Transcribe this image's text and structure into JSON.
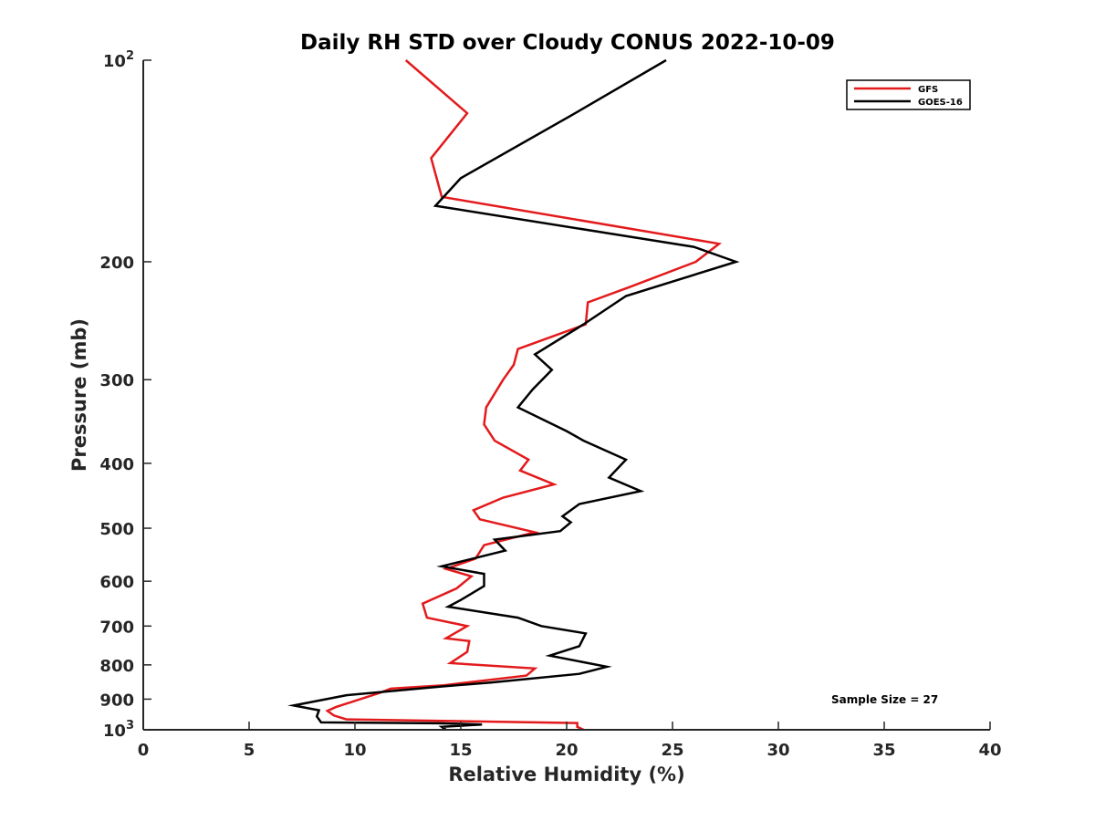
{
  "chart_data": {
    "type": "line",
    "title": "Daily RH STD over Cloudy CONUS 2022-10-09",
    "xlabel": "Relative Humidity (%)",
    "ylabel": "Pressure (mb)",
    "xlim": [
      0,
      40
    ],
    "ylim": [
      100,
      1000
    ],
    "y_scale": "log",
    "y_reversed": true,
    "grid": false,
    "legend_position": "top-right",
    "x_ticks": [
      {
        "value": 0,
        "label": "0"
      },
      {
        "value": 5,
        "label": "5"
      },
      {
        "value": 10,
        "label": "10"
      },
      {
        "value": 15,
        "label": "15"
      },
      {
        "value": 20,
        "label": "20"
      },
      {
        "value": 25,
        "label": "25"
      },
      {
        "value": 30,
        "label": "30"
      },
      {
        "value": 35,
        "label": "35"
      },
      {
        "value": 40,
        "label": "40"
      }
    ],
    "y_ticks": [
      {
        "value": 100,
        "base": "10",
        "exp": "2"
      },
      {
        "value": 200,
        "label": "200"
      },
      {
        "value": 300,
        "label": "300"
      },
      {
        "value": 400,
        "label": "400"
      },
      {
        "value": 500,
        "label": "500"
      },
      {
        "value": 600,
        "label": "600"
      },
      {
        "value": 700,
        "label": "700"
      },
      {
        "value": 800,
        "label": "800"
      },
      {
        "value": 900,
        "label": "900"
      },
      {
        "value": 1000,
        "base": "10",
        "exp": "3"
      }
    ],
    "series": [
      {
        "name": "GFS",
        "color": "#e31a1c",
        "points": [
          [
            12.4,
            100
          ],
          [
            15.3,
            120
          ],
          [
            13.6,
            140
          ],
          [
            14.1,
            160
          ],
          [
            27.2,
            188
          ],
          [
            26.1,
            200
          ],
          [
            23.0,
            218
          ],
          [
            21.0,
            230
          ],
          [
            20.9,
            248
          ],
          [
            17.7,
            270
          ],
          [
            17.5,
            285
          ],
          [
            17.0,
            300
          ],
          [
            16.2,
            330
          ],
          [
            16.1,
            350
          ],
          [
            16.6,
            370
          ],
          [
            18.2,
            395
          ],
          [
            17.8,
            410
          ],
          [
            19.4,
            430
          ],
          [
            17.0,
            450
          ],
          [
            15.6,
            470
          ],
          [
            15.9,
            485
          ],
          [
            18.5,
            507
          ],
          [
            16.1,
            530
          ],
          [
            15.7,
            555
          ],
          [
            14.3,
            575
          ],
          [
            15.5,
            590
          ],
          [
            14.8,
            615
          ],
          [
            13.2,
            648
          ],
          [
            13.4,
            680
          ],
          [
            15.3,
            700
          ],
          [
            14.3,
            730
          ],
          [
            15.4,
            737
          ],
          [
            15.3,
            765
          ],
          [
            14.5,
            795
          ],
          [
            18.5,
            810
          ],
          [
            18.1,
            830
          ],
          [
            14.2,
            858
          ],
          [
            11.7,
            868
          ],
          [
            11.2,
            880
          ],
          [
            9.1,
            925
          ],
          [
            8.7,
            937
          ],
          [
            9.0,
            952
          ],
          [
            9.6,
            965
          ],
          [
            20.5,
            977
          ],
          [
            20.5,
            990
          ],
          [
            20.8,
            1000
          ]
        ]
      },
      {
        "name": "GOES-16",
        "color": "#000000",
        "points": [
          [
            24.7,
            100
          ],
          [
            20.4,
            120
          ],
          [
            15.0,
            150
          ],
          [
            13.8,
            165
          ],
          [
            26.0,
            190
          ],
          [
            28.0,
            200
          ],
          [
            22.8,
            225
          ],
          [
            20.8,
            248
          ],
          [
            18.5,
            275
          ],
          [
            19.3,
            290
          ],
          [
            18.4,
            310
          ],
          [
            17.7,
            330
          ],
          [
            20.0,
            358
          ],
          [
            20.8,
            370
          ],
          [
            22.8,
            395
          ],
          [
            22.0,
            420
          ],
          [
            23.5,
            440
          ],
          [
            20.6,
            460
          ],
          [
            19.8,
            480
          ],
          [
            20.2,
            490
          ],
          [
            19.7,
            505
          ],
          [
            16.6,
            520
          ],
          [
            17.1,
            540
          ],
          [
            14.1,
            570
          ],
          [
            16.1,
            585
          ],
          [
            16.1,
            610
          ],
          [
            15.0,
            640
          ],
          [
            14.4,
            655
          ],
          [
            17.7,
            680
          ],
          [
            18.8,
            700
          ],
          [
            20.9,
            718
          ],
          [
            20.6,
            750
          ],
          [
            19.2,
            775
          ],
          [
            21.9,
            805
          ],
          [
            20.6,
            825
          ],
          [
            16.4,
            850
          ],
          [
            14.0,
            862
          ],
          [
            9.6,
            888
          ],
          [
            7.1,
            920
          ],
          [
            8.3,
            935
          ],
          [
            8.2,
            955
          ],
          [
            8.4,
            975
          ],
          [
            14.0,
            978
          ],
          [
            16.0,
            982
          ],
          [
            14.1,
            990
          ],
          [
            14.3,
            1000
          ]
        ]
      }
    ],
    "annotation": "Sample Size = 27"
  }
}
